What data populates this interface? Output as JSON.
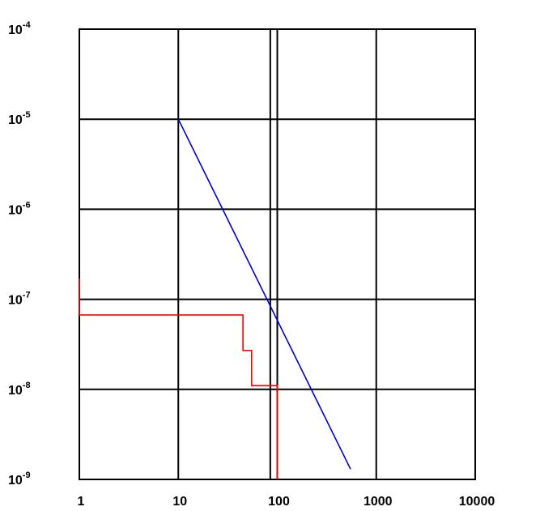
{
  "chart_data": {
    "type": "line",
    "title": "",
    "xlabel": "",
    "ylabel": "",
    "x_scale": "log",
    "y_scale": "log",
    "xlim": [
      1,
      10000
    ],
    "ylim": [
      1e-09,
      0.0001
    ],
    "grid": true,
    "legend": "none",
    "x_ticks": [
      {
        "value": 1,
        "label": "1"
      },
      {
        "value": 10,
        "label": "10"
      },
      {
        "value": 100,
        "label": "100"
      },
      {
        "value": 1000,
        "label": "1000"
      },
      {
        "value": 10000,
        "label": "10000"
      }
    ],
    "y_ticks": [
      {
        "value": 0.0001,
        "base": "10",
        "exp": "-4"
      },
      {
        "value": 1e-05,
        "base": "10",
        "exp": "-5"
      },
      {
        "value": 1e-06,
        "base": "10",
        "exp": "-6"
      },
      {
        "value": 1e-07,
        "base": "10",
        "exp": "-7"
      },
      {
        "value": 1e-08,
        "base": "10",
        "exp": "-8"
      },
      {
        "value": 1e-09,
        "base": "10",
        "exp": "-9"
      }
    ],
    "extra_vline": {
      "x": 85,
      "color": "#000000"
    },
    "series": [
      {
        "color": "#0000cc",
        "style": "line",
        "points": [
          [
            10,
            1e-05
          ],
          [
            550,
            1.3e-09
          ]
        ]
      },
      {
        "color": "#ff0000",
        "style": "step",
        "points": [
          [
            1,
            1.7e-07
          ],
          [
            1,
            6.7e-08
          ],
          [
            45,
            6.7e-08
          ],
          [
            45,
            2.7e-08
          ],
          [
            55,
            2.7e-08
          ],
          [
            55,
            1.1e-08
          ],
          [
            100,
            1.1e-08
          ],
          [
            100,
            1e-09
          ]
        ]
      }
    ]
  }
}
